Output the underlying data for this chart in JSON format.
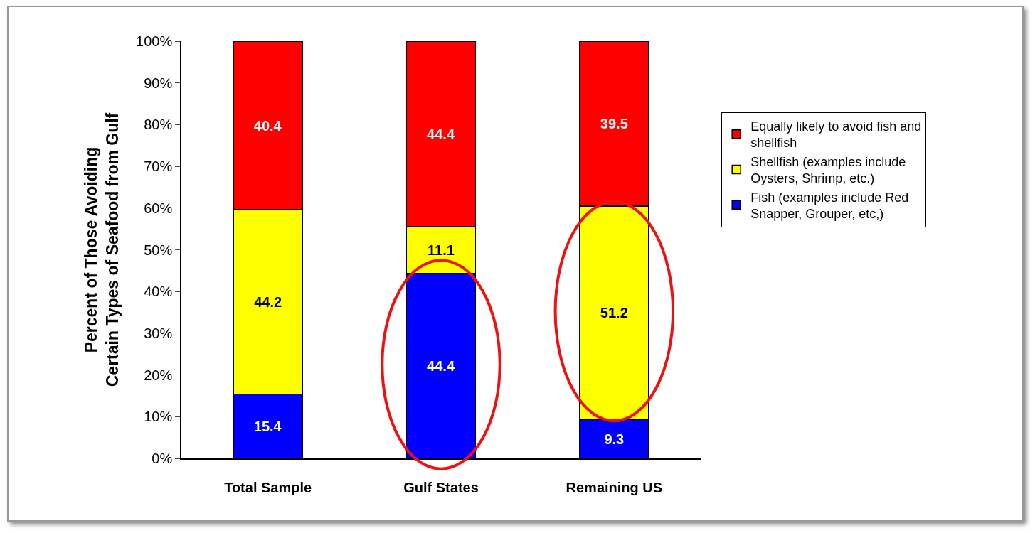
{
  "chart_data": {
    "type": "bar",
    "stacked": true,
    "ylabel": "Percent of Those Avoiding\nCertain Types of Seafood from Gulf",
    "categories": [
      "Total Sample",
      "Gulf States",
      "Remaining US"
    ],
    "series": [
      {
        "name": "Fish (examples include Red Snapper, Grouper, etc,)",
        "color": "#0000ff",
        "values": [
          15.4,
          44.4,
          9.3
        ]
      },
      {
        "name": "Shellfish (examples include Oysters, Shrimp, etc.)",
        "color": "#ffff00",
        "values": [
          44.2,
          11.1,
          51.2
        ]
      },
      {
        "name": "Equally likely to avoid fish and shellfish",
        "color": "#ff0000",
        "values": [
          40.4,
          44.4,
          39.5
        ]
      }
    ],
    "ylim": [
      0,
      100
    ],
    "yticks": [
      {
        "value": 0,
        "label": "0%"
      },
      {
        "value": 10,
        "label": "10%"
      },
      {
        "value": 20,
        "label": "20%"
      },
      {
        "value": 30,
        "label": "30%"
      },
      {
        "value": 40,
        "label": "40%"
      },
      {
        "value": 50,
        "label": "50%"
      },
      {
        "value": 60,
        "label": "60%"
      },
      {
        "value": 70,
        "label": "70%"
      },
      {
        "value": 80,
        "label": "80%"
      },
      {
        "value": 90,
        "label": "90%"
      },
      {
        "value": 100,
        "label": "100%"
      }
    ],
    "data_labels": true,
    "grid": false,
    "legend": "right"
  }
}
